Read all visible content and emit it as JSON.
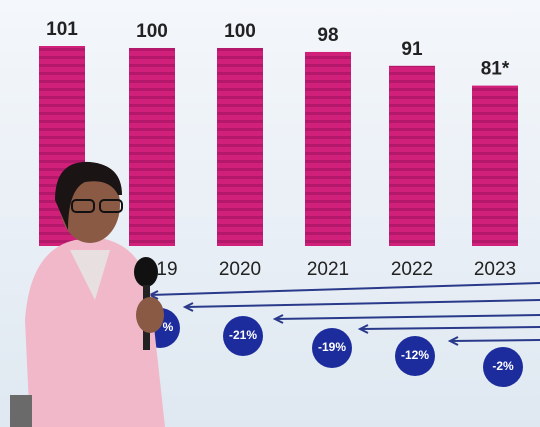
{
  "chart_data": {
    "type": "bar",
    "categories": [
      null,
      "19",
      "2020",
      "2021",
      "2022",
      "2023"
    ],
    "values": [
      101,
      100,
      100,
      98,
      91,
      81
    ],
    "value_labels": [
      "101",
      "100",
      "100",
      "98",
      "91",
      "81*"
    ],
    "color": "#d0207a",
    "annotations": [
      "%",
      "-21%",
      "-19%",
      "-12%",
      "-2%"
    ]
  }
}
